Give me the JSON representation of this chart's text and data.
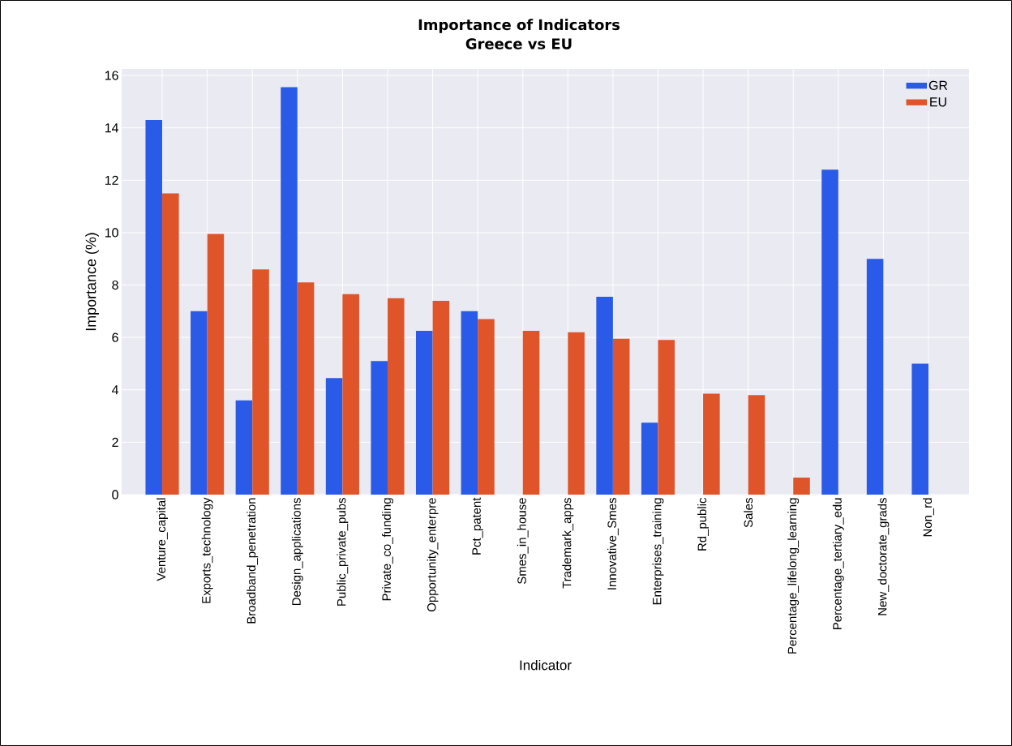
{
  "chart_data": {
    "type": "bar",
    "title": "Importance of Indicators",
    "subtitle": "Greece vs EU",
    "xlabel": "Indicator",
    "ylabel": "Importance (%)",
    "categories": [
      "Venture_capital",
      "Exports_technology",
      "Broadband_penetration",
      "Design_applications",
      "Public_private_pubs",
      "Private_co_funding",
      "Opportunity_enterpre",
      "Pct_patent",
      "Smes_in_house",
      "Trademark_apps",
      "Innovative_Smes",
      "Enterprises_training",
      "Rd_public",
      "Sales",
      "Percentage_lifelong_learning",
      "Percentage_tertiary_edu",
      "New_doctorate_grads",
      "Non_rd"
    ],
    "series": [
      {
        "name": "GR",
        "color": "#2a5ae8",
        "values": [
          14.3,
          7.0,
          3.6,
          15.55,
          4.45,
          5.1,
          6.25,
          7.0,
          null,
          null,
          7.55,
          2.75,
          null,
          null,
          null,
          12.4,
          9.0,
          5.0
        ]
      },
      {
        "name": "EU",
        "color": "#e0542a",
        "values": [
          11.5,
          9.95,
          8.6,
          8.1,
          7.65,
          7.5,
          7.4,
          6.7,
          6.25,
          6.2,
          5.95,
          5.9,
          3.85,
          3.8,
          0.65,
          null,
          null,
          null
        ]
      }
    ],
    "ylim": [
      0,
      16.25
    ],
    "yticks": [
      0,
      2,
      4,
      6,
      8,
      10,
      12,
      14,
      16
    ],
    "grid": true,
    "legend": "top right"
  }
}
